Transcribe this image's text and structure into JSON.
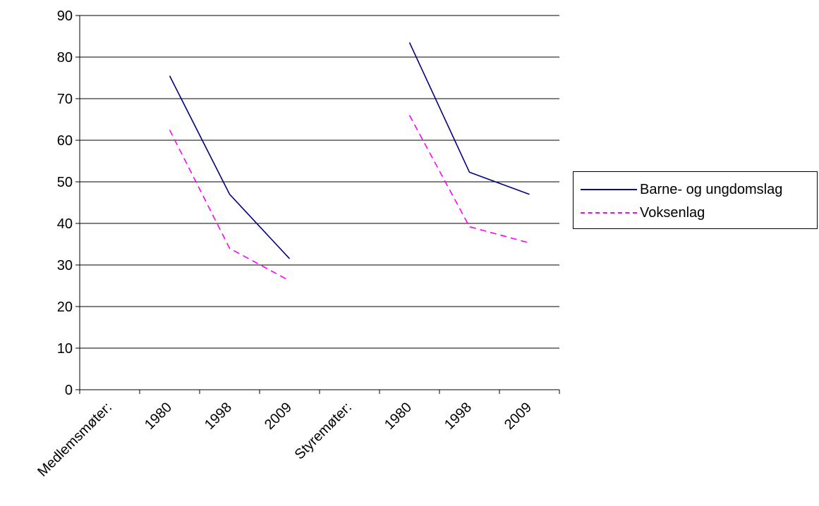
{
  "chart_data": {
    "type": "line",
    "categories": [
      "Medlemsmøter:",
      "1980",
      "1998",
      "2009",
      "Styremøter:",
      "1980",
      "1998",
      "2009"
    ],
    "ylim": [
      0,
      90
    ],
    "yticks": [
      0,
      10,
      20,
      30,
      40,
      50,
      60,
      70,
      80,
      90
    ],
    "grid": true,
    "legend_position": "right",
    "series": [
      {
        "name": "Barne- og ungdomslag",
        "color": "#000080",
        "dash": "solid",
        "values": [
          null,
          75.5,
          47,
          31.5,
          null,
          83.5,
          52.3,
          47
        ]
      },
      {
        "name": "Voksenlag",
        "color": "#ff00ff",
        "dash": "dashed",
        "values": [
          null,
          62.5,
          34,
          26.2,
          null,
          66,
          39.2,
          35.3
        ]
      }
    ]
  }
}
